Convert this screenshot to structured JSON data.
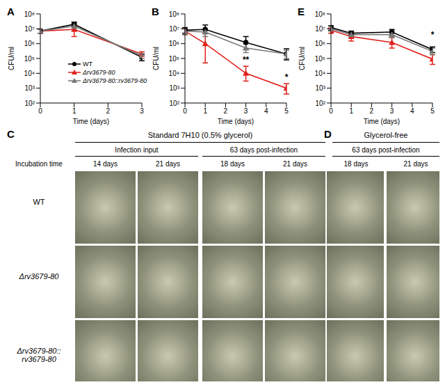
{
  "chart_data": [
    {
      "type": "line",
      "title": "A",
      "x_label": "Time (days)",
      "y_label": "CFU/ml",
      "log": "y",
      "legend": "center",
      "x": [
        0,
        1,
        3
      ],
      "xlim": [
        0,
        3
      ],
      "xticks": [
        0,
        1,
        2,
        3
      ],
      "ylim": [
        100,
        100000000
      ],
      "yticks": [
        {
          "value": 100,
          "label": "10²"
        },
        {
          "value": 1000,
          "label": "10³"
        },
        {
          "value": 10000,
          "label": "10⁴"
        },
        {
          "value": 100000,
          "label": "10⁵"
        },
        {
          "value": 1000000,
          "label": "10⁶"
        },
        {
          "value": 10000000,
          "label": "10⁷"
        },
        {
          "value": 100000000,
          "label": "10⁸"
        }
      ],
      "series": [
        {
          "name": "WT",
          "color": "#000000",
          "marker": "circle",
          "values": [
            7000000,
            20000000,
            120000
          ],
          "error_lower": [
            5000000,
            14000000,
            70000
          ],
          "error_upper": [
            9000000,
            28000000,
            180000
          ]
        },
        {
          "name": "Δrv3679-80",
          "color": "#e0201b",
          "marker": "triangle",
          "values": [
            7000000,
            9000000,
            200000
          ],
          "error_lower": [
            5000000,
            3000000,
            140000
          ],
          "error_upper": [
            9000000,
            16000000,
            280000
          ]
        },
        {
          "name": "Δrv3679-80::rv3679-80",
          "color": "#777777",
          "marker": "triangle",
          "values": [
            7000000,
            15000000,
            150000
          ],
          "error_lower": [
            5000000,
            9000000,
            100000
          ],
          "error_upper": [
            9000000,
            22000000,
            220000
          ]
        }
      ],
      "annotations": []
    },
    {
      "type": "line",
      "title": "B",
      "x_label": "Time (days)",
      "y_label": "CFU/ml",
      "log": "y",
      "x": [
        0,
        1,
        3,
        5
      ],
      "xlim": [
        0,
        5
      ],
      "xticks": [
        0,
        1,
        2,
        3,
        4,
        5
      ],
      "ylim": [
        100,
        100000000
      ],
      "yticks": [
        {
          "value": 100,
          "label": "10²"
        },
        {
          "value": 1000,
          "label": "10³"
        },
        {
          "value": 10000,
          "label": "10⁴"
        },
        {
          "value": 100000,
          "label": "10⁵"
        },
        {
          "value": 1000000,
          "label": "10⁶"
        },
        {
          "value": 10000000,
          "label": "10⁷"
        },
        {
          "value": 100000000,
          "label": "10⁸"
        }
      ],
      "series": [
        {
          "name": "WT",
          "color": "#000000",
          "marker": "circle",
          "values": [
            8000000,
            9000000,
            1200000,
            200000
          ],
          "error_lower": [
            5000000,
            5000000,
            400000,
            80000
          ],
          "error_upper": [
            12000000,
            18000000,
            3000000,
            450000
          ]
        },
        {
          "name": "Δrv3679-80",
          "color": "#e0201b",
          "marker": "triangle",
          "values": [
            7000000,
            1000000,
            10000,
            1000
          ],
          "error_lower": [
            4000000,
            50000,
            3000,
            400
          ],
          "error_upper": [
            10000000,
            5000000,
            30000,
            2000
          ]
        },
        {
          "name": "Δrv3679-80::rv3679-80",
          "color": "#777777",
          "marker": "triangle",
          "values": [
            7000000,
            6000000,
            500000,
            200000
          ],
          "error_lower": [
            4000000,
            3000000,
            250000,
            100000
          ],
          "error_upper": [
            10000000,
            10000000,
            1000000,
            350000
          ]
        }
      ],
      "annotations": [
        {
          "x": 3,
          "y": 30000,
          "text": "**"
        },
        {
          "x": 5,
          "y": 2000,
          "text": "*"
        }
      ]
    },
    {
      "type": "line",
      "title": "E",
      "x_label": "Time (days)",
      "y_label": "CFU/ml",
      "log": "y",
      "x": [
        0,
        1,
        3,
        5
      ],
      "xlim": [
        0,
        5
      ],
      "xticks": [
        0,
        1,
        2,
        3,
        4,
        5
      ],
      "ylim": [
        100,
        100000000
      ],
      "yticks": [
        {
          "value": 100,
          "label": "10²"
        },
        {
          "value": 1000,
          "label": "10³"
        },
        {
          "value": 10000,
          "label": "10⁴"
        },
        {
          "value": 100000,
          "label": "10⁵"
        },
        {
          "value": 1000000,
          "label": "10⁶"
        },
        {
          "value": 10000000,
          "label": "10⁷"
        },
        {
          "value": 100000000,
          "label": "10⁸"
        }
      ],
      "series": [
        {
          "name": "WT",
          "color": "#000000",
          "marker": "circle",
          "values": [
            12000000,
            5000000,
            6000000,
            400000
          ],
          "error_lower": [
            8000000,
            3500000,
            3500000,
            250000
          ],
          "error_upper": [
            16000000,
            7000000,
            9000000,
            600000
          ]
        },
        {
          "name": "Δrv3679-80",
          "color": "#e0201b",
          "marker": "triangle",
          "values": [
            8000000,
            3000000,
            1200000,
            90000
          ],
          "error_lower": [
            5000000,
            1500000,
            500000,
            40000
          ],
          "error_upper": [
            11000000,
            5000000,
            2500000,
            180000
          ]
        },
        {
          "name": "Δrv3679-80::rv3679-80",
          "color": "#777777",
          "marker": "triangle",
          "values": [
            10000000,
            4000000,
            4000000,
            300000
          ],
          "error_lower": [
            7000000,
            2500000,
            2500000,
            180000
          ],
          "error_upper": [
            14000000,
            6000000,
            6000000,
            500000
          ]
        }
      ],
      "annotations": [
        {
          "x": 5,
          "y": 1500000,
          "text": "*"
        }
      ]
    }
  ],
  "image_panels": {
    "C": {
      "title": "C",
      "header": "Standard 7H10 (0.5% glycerol)",
      "groups": [
        {
          "label": "Infection input",
          "times": [
            "14 days",
            "21 days"
          ]
        },
        {
          "label": "63 days post-infection",
          "times": [
            "18 days",
            "21 days"
          ]
        }
      ]
    },
    "D": {
      "title": "D",
      "header": "Glycerol-free",
      "groups": [
        {
          "label": "63 days post-infection",
          "times": [
            "18 days",
            "21 days"
          ]
        }
      ]
    },
    "incubation_label": "Incubation time",
    "rows": [
      "WT",
      "Δrv3679-80",
      "Δrv3679-80::rv3679-80"
    ]
  }
}
